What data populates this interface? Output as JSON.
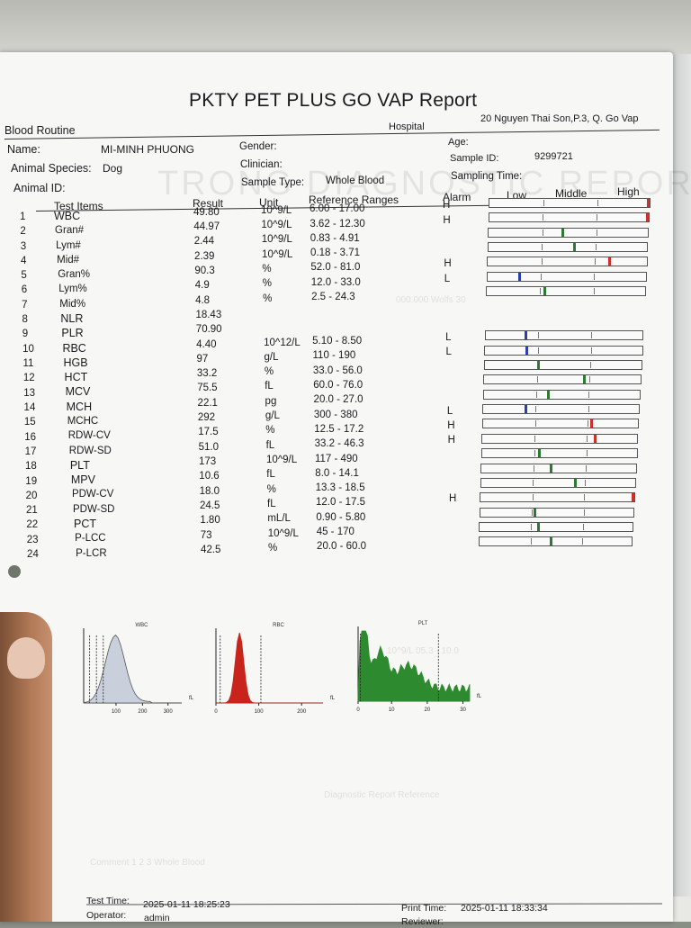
{
  "report": {
    "title": "PKTY PET PLUS GO VAP Report",
    "section": "Blood Routine",
    "hospital_label": "Hospital",
    "hospital_address": "20 Nguyen Thai Son,P.3, Q. Go Vap",
    "watermark": "TRONG DIAGNOSTIC REPORT"
  },
  "patient": {
    "name_label": "Name:",
    "name": "MI-MINH PHUONG",
    "species_label": "Animal Species:",
    "species": "Dog",
    "id_label": "Animal ID:",
    "gender_label": "Gender:",
    "clinician_label": "Clinician:",
    "sample_type_label": "Sample Type:",
    "sample_type": "Whole Blood",
    "age_label": "Age:",
    "sample_id_label": "Sample ID:",
    "sample_id": "9299721",
    "sampling_time_label": "Sampling Time:"
  },
  "table_headers": {
    "items": "Test Items",
    "result": "Result",
    "unit": "Unit",
    "reference": "Reference Ranges",
    "alarm": "Alarm",
    "low": "Low",
    "middle": "Middle",
    "high": "High"
  },
  "tests": [
    {
      "no": "1",
      "name": "WBC",
      "result": "49.80",
      "unit": "10^9/L",
      "range": "6.00 - 17.00",
      "alarm": "H",
      "level": 0.995,
      "color": "#d0302a"
    },
    {
      "no": "2",
      "name": "Gran#",
      "result": "44.97",
      "unit": "10^9/L",
      "range": "3.62 - 12.30",
      "alarm": "H",
      "level": 0.995,
      "color": "#d0302a"
    },
    {
      "no": "3",
      "name": "Lym#",
      "result": "2.44",
      "unit": "10^9/L",
      "range": "0.83 - 4.91",
      "alarm": "",
      "level": 0.46,
      "color": "#2f7a33"
    },
    {
      "no": "4",
      "name": "Mid#",
      "result": "2.39",
      "unit": "10^9/L",
      "range": "0.18 - 3.71",
      "alarm": "",
      "level": 0.54,
      "color": "#2f7a33"
    },
    {
      "no": "5",
      "name": "Gran%",
      "result": "90.3",
      "unit": "%",
      "range": "52.0 - 81.0",
      "alarm": "H",
      "level": 0.77,
      "color": "#d0302a"
    },
    {
      "no": "6",
      "name": "Lym%",
      "result": "4.9",
      "unit": "%",
      "range": "12.0 - 33.0",
      "alarm": "L",
      "level": 0.2,
      "color": "#2c3fb0"
    },
    {
      "no": "7",
      "name": "Mid%",
      "result": "4.8",
      "unit": "%",
      "range": "2.5 - 24.3",
      "alarm": "",
      "level": 0.36,
      "color": "#2f7a33"
    },
    {
      "no": "8",
      "name": "NLR",
      "result": "18.43",
      "unit": "",
      "range": "",
      "alarm": "",
      "level": null,
      "color": ""
    },
    {
      "no": "9",
      "name": "PLR",
      "result": "70.90",
      "unit": "",
      "range": "",
      "alarm": "",
      "level": null,
      "color": ""
    },
    {
      "no": "10",
      "name": "RBC",
      "result": "4.40",
      "unit": "10^12/L",
      "range": "5.10 - 8.50",
      "alarm": "L",
      "level": 0.25,
      "color": "#2c3fb0"
    },
    {
      "no": "11",
      "name": "HGB",
      "result": "97",
      "unit": "g/L",
      "range": "110 - 190",
      "alarm": "L",
      "level": 0.26,
      "color": "#2c3fb0"
    },
    {
      "no": "12",
      "name": "HCT",
      "result": "33.2",
      "unit": "%",
      "range": "33.0 - 56.0",
      "alarm": "",
      "level": 0.34,
      "color": "#2f7a33"
    },
    {
      "no": "13",
      "name": "MCV",
      "result": "75.5",
      "unit": "fL",
      "range": "60.0 - 76.0",
      "alarm": "",
      "level": 0.64,
      "color": "#2f7a33"
    },
    {
      "no": "14",
      "name": "MCH",
      "result": "22.1",
      "unit": "pg",
      "range": "20.0 - 27.0",
      "alarm": "",
      "level": 0.41,
      "color": "#2f7a33"
    },
    {
      "no": "15",
      "name": "MCHC",
      "result": "292",
      "unit": "g/L",
      "range": "300 - 380",
      "alarm": "L",
      "level": 0.27,
      "color": "#2c3fb0"
    },
    {
      "no": "16",
      "name": "RDW-CV",
      "result": "17.5",
      "unit": "%",
      "range": "12.5 - 17.2",
      "alarm": "H",
      "level": 0.7,
      "color": "#d0302a"
    },
    {
      "no": "17",
      "name": "RDW-SD",
      "result": "51.0",
      "unit": "fL",
      "range": "33.2 - 46.3",
      "alarm": "H",
      "level": 0.73,
      "color": "#d0302a"
    },
    {
      "no": "18",
      "name": "PLT",
      "result": "173",
      "unit": "10^9/L",
      "range": "117 - 490",
      "alarm": "",
      "level": 0.37,
      "color": "#2f7a33"
    },
    {
      "no": "19",
      "name": "MPV",
      "result": "10.6",
      "unit": "fL",
      "range": "8.0 - 14.1",
      "alarm": "",
      "level": 0.45,
      "color": "#2f7a33"
    },
    {
      "no": "20",
      "name": "PDW-CV",
      "result": "18.0",
      "unit": "%",
      "range": "13.3 - 18.5",
      "alarm": "",
      "level": 0.61,
      "color": "#2f7a33"
    },
    {
      "no": "21",
      "name": "PDW-SD",
      "result": "24.5",
      "unit": "fL",
      "range": "12.0 - 17.5",
      "alarm": "H",
      "level": 0.995,
      "color": "#d0302a"
    },
    {
      "no": "22",
      "name": "PCT",
      "result": "1.80",
      "unit": "mL/L",
      "range": "0.90 - 5.80",
      "alarm": "",
      "level": 0.35,
      "color": "#2f7a33"
    },
    {
      "no": "23",
      "name": "P-LCC",
      "result": "73",
      "unit": "10^9/L",
      "range": "45 - 170",
      "alarm": "",
      "level": 0.38,
      "color": "#2f7a33"
    },
    {
      "no": "24",
      "name": "P-LCR",
      "result": "42.5",
      "unit": "%",
      "range": "20.0 - 60.0",
      "alarm": "",
      "level": 0.47,
      "color": "#2f7a33"
    }
  ],
  "histograms": {
    "wbc": {
      "label": "WBC",
      "unit": "fL",
      "ticks": [
        "100",
        "200",
        "300"
      ],
      "color": "#c9d0dc"
    },
    "rbc": {
      "label": "RBC",
      "unit": "fL",
      "ticks": [
        "0",
        "100",
        "200"
      ],
      "color": "#c8241c"
    },
    "plt": {
      "label": "PLT",
      "unit": "fL",
      "ticks": [
        "0",
        "10",
        "20",
        "30"
      ],
      "color": "#2e8a2e"
    }
  },
  "footer": {
    "test_time_label": "Test Time:",
    "test_time": "2025-01-11 18:25:23",
    "operator_label": "Operator:",
    "operator": "admin",
    "print_time_label": "Print Time:",
    "print_time": "2025-01-11 18:33:34",
    "reviewer_label": "Reviewer:"
  }
}
